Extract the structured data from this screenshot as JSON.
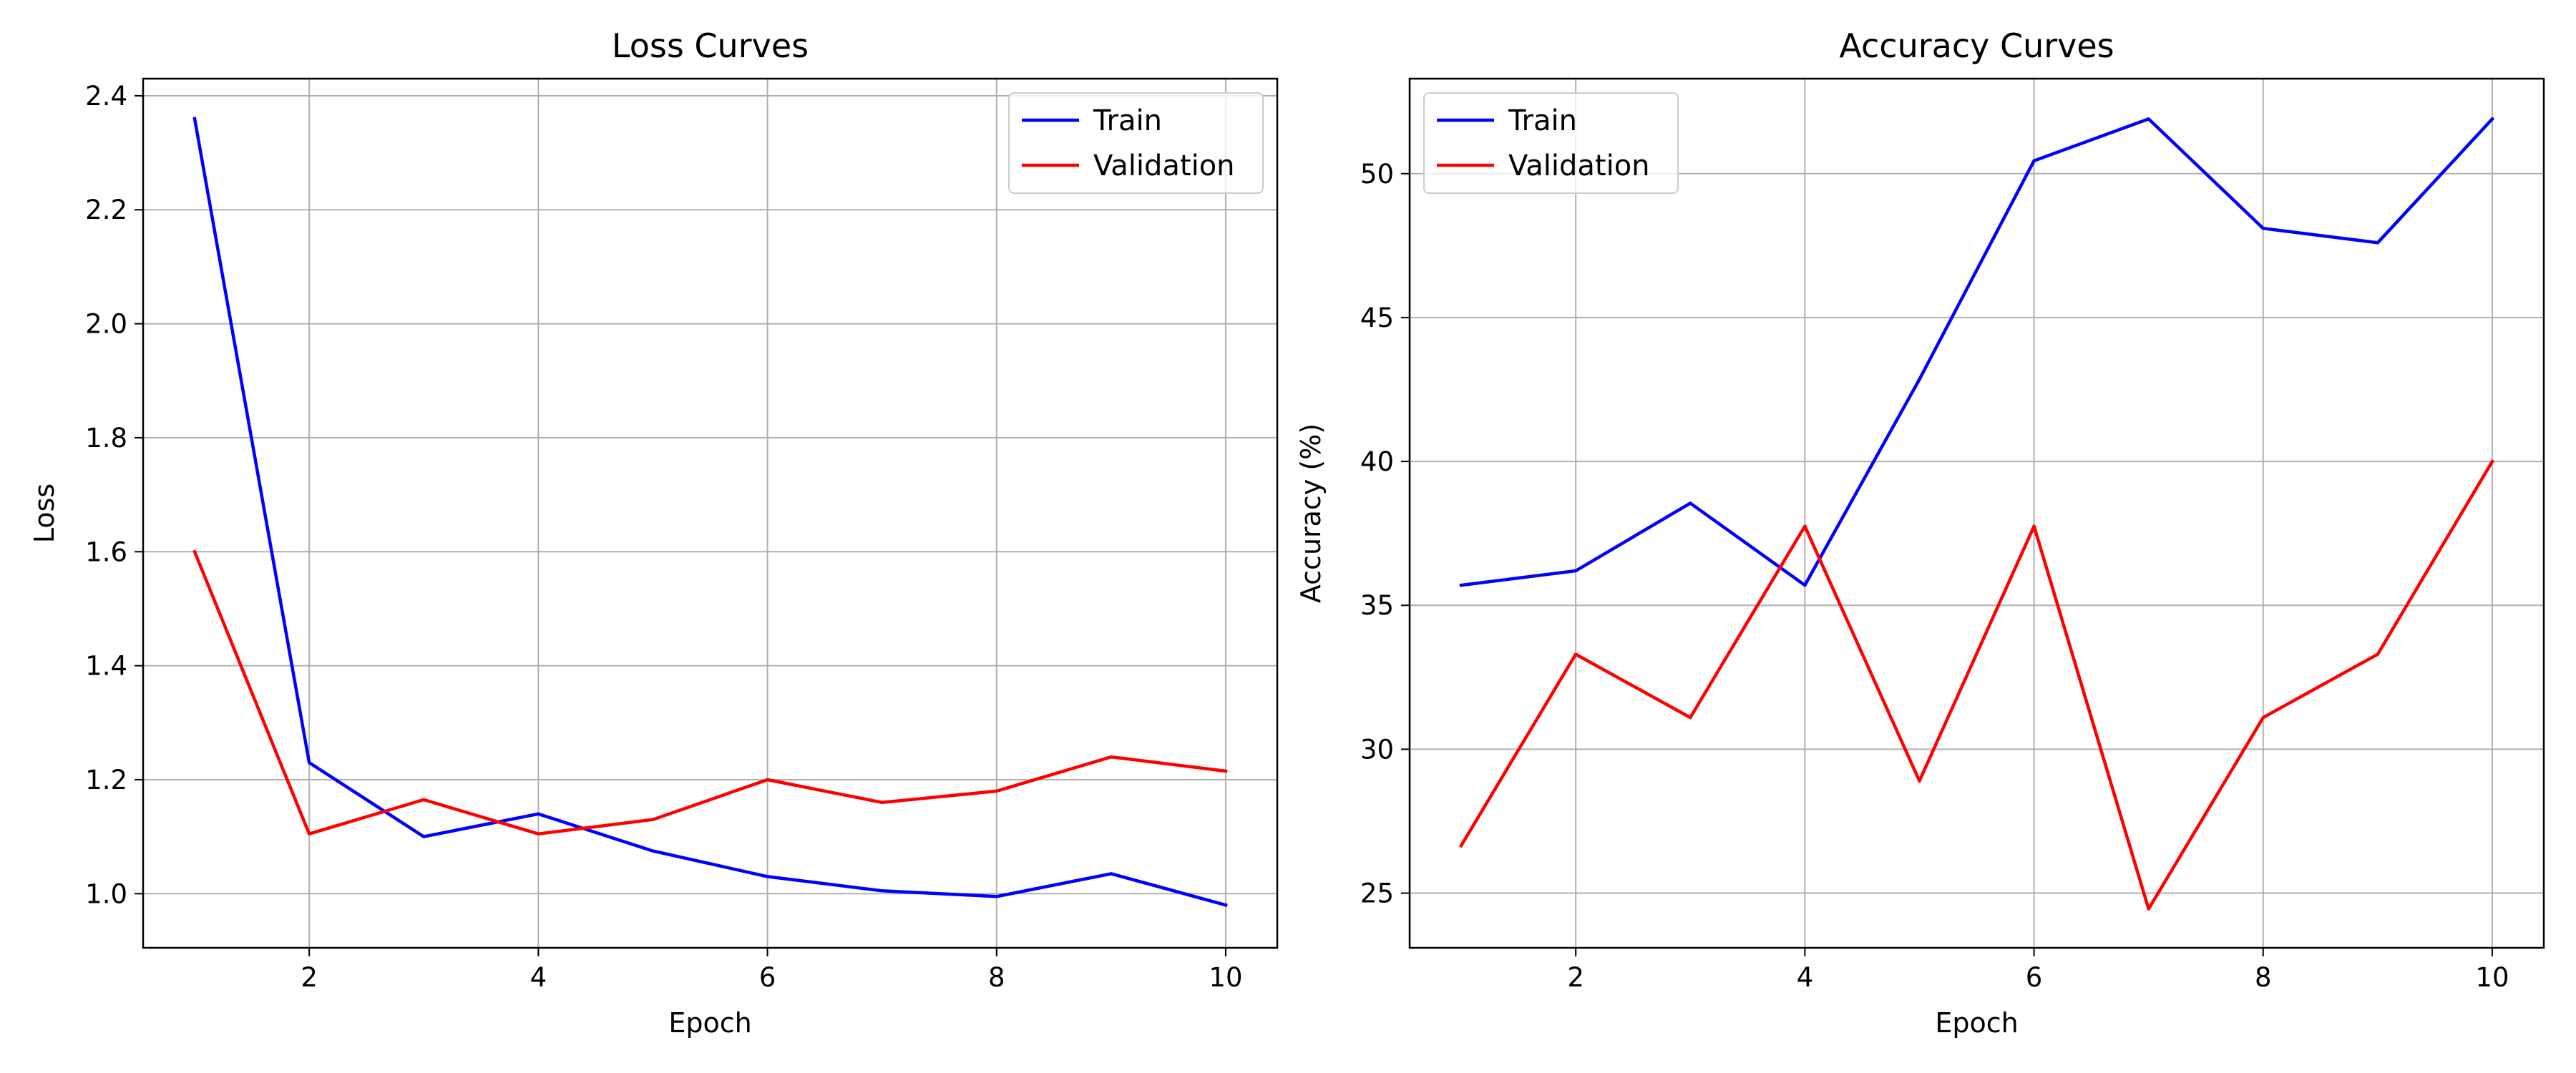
{
  "chart_data": [
    {
      "type": "line",
      "title": "Loss Curves",
      "xlabel": "Epoch",
      "ylabel": "Loss",
      "xlim": [
        0.55,
        10.45
      ],
      "ylim": [
        0.905,
        2.43
      ],
      "xticks": [
        2,
        4,
        6,
        8,
        10
      ],
      "xtick_labels": [
        "2",
        "4",
        "6",
        "8",
        "10"
      ],
      "yticks": [
        1.0,
        1.2,
        1.4,
        1.6,
        1.8,
        2.0,
        2.2,
        2.4
      ],
      "ytick_labels": [
        "1.0",
        "1.2",
        "1.4",
        "1.6",
        "1.8",
        "2.0",
        "2.2",
        "2.4"
      ],
      "grid": true,
      "legend_position": "top-right",
      "x": [
        1,
        2,
        3,
        4,
        5,
        6,
        7,
        8,
        9,
        10
      ],
      "series": [
        {
          "name": "Train",
          "color": "#0000ff",
          "values": [
            2.36,
            1.23,
            1.1,
            1.14,
            1.075,
            1.03,
            1.005,
            0.995,
            1.035,
            0.98
          ]
        },
        {
          "name": "Validation",
          "color": "#ff0000",
          "values": [
            1.6,
            1.105,
            1.165,
            1.105,
            1.13,
            1.2,
            1.16,
            1.18,
            1.24,
            1.215
          ]
        }
      ]
    },
    {
      "type": "line",
      "title": "Accuracy Curves",
      "xlabel": "Epoch",
      "ylabel": "Accuracy (%)",
      "xlim": [
        0.55,
        10.45
      ],
      "ylim": [
        23.1,
        53.3
      ],
      "xticks": [
        2,
        4,
        6,
        8,
        10
      ],
      "xtick_labels": [
        "2",
        "4",
        "6",
        "8",
        "10"
      ],
      "yticks": [
        25,
        30,
        35,
        40,
        45,
        50
      ],
      "ytick_labels": [
        "25",
        "30",
        "35",
        "40",
        "45",
        "50"
      ],
      "grid": true,
      "legend_position": "top-left",
      "x": [
        1,
        2,
        3,
        4,
        5,
        6,
        7,
        8,
        9,
        10
      ],
      "series": [
        {
          "name": "Train",
          "color": "#0000ff",
          "values": [
            35.7,
            36.2,
            38.55,
            35.7,
            42.85,
            50.45,
            51.9,
            48.1,
            47.6,
            51.9
          ]
        },
        {
          "name": "Validation",
          "color": "#ff0000",
          "values": [
            26.65,
            33.3,
            31.1,
            37.75,
            28.9,
            37.75,
            24.45,
            31.1,
            33.3,
            40.0
          ]
        }
      ]
    }
  ]
}
